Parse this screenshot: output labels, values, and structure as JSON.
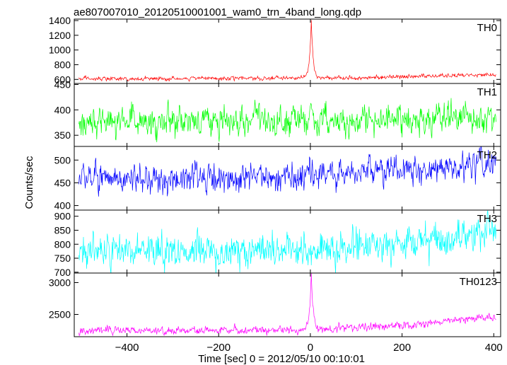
{
  "chart_data": {
    "type": "line",
    "title": "ae807007010_20120510001001_wam0_trn_4band_long.qdp",
    "xlabel": "Time [sec] 0 = 2012/05/10 00:10:01",
    "ylabel": "Counts/sec",
    "xlim": [
      -515,
      415
    ],
    "x_ticks": [
      -400,
      -200,
      0,
      200,
      400
    ],
    "x_tick_labels": [
      "−400",
      "−200",
      "0",
      "200",
      "400"
    ],
    "grid": false,
    "panels": [
      {
        "name": "TH0",
        "color": "#ff0000",
        "ylim": [
          545,
          1420
        ],
        "y_ticks": [
          600,
          800,
          1000,
          1200,
          1400
        ],
        "trend": [
          [
            -505,
            610
          ],
          [
            -300,
            612
          ],
          [
            -100,
            615
          ],
          [
            0,
            618
          ],
          [
            100,
            625
          ],
          [
            200,
            635
          ],
          [
            300,
            650
          ],
          [
            405,
            665
          ]
        ],
        "noise_std": 14,
        "spike": {
          "x": 2,
          "peak": 1420,
          "width": 7
        }
      },
      {
        "name": "TH1",
        "color": "#00ff00",
        "ylim": [
          328,
          452
        ],
        "y_ticks": [
          350,
          400,
          450
        ],
        "trend": [
          [
            -505,
            378
          ],
          [
            -200,
            378
          ],
          [
            0,
            380
          ],
          [
            200,
            381
          ],
          [
            405,
            384
          ]
        ],
        "noise_std": 14
      },
      {
        "name": "TH2",
        "color": "#0000ff",
        "ylim": [
          390,
          530
        ],
        "y_ticks": [
          400,
          450,
          500
        ],
        "trend": [
          [
            -505,
            462
          ],
          [
            -300,
            460
          ],
          [
            -100,
            462
          ],
          [
            0,
            466
          ],
          [
            200,
            475
          ],
          [
            300,
            485
          ],
          [
            405,
            495
          ]
        ],
        "noise_std": 15
      },
      {
        "name": "TH3",
        "color": "#00ffff",
        "ylim": [
          697,
          922
        ],
        "y_ticks": [
          700,
          750,
          800,
          850,
          900
        ],
        "trend": [
          [
            -505,
            775
          ],
          [
            -300,
            776
          ],
          [
            -100,
            778
          ],
          [
            0,
            782
          ],
          [
            200,
            800
          ],
          [
            300,
            820
          ],
          [
            405,
            845
          ]
        ],
        "noise_std": 28
      },
      {
        "name": "TH0123",
        "color": "#ff00ff",
        "ylim": [
          2150,
          3150
        ],
        "y_ticks": [
          2500,
          3000
        ],
        "trend": [
          [
            -505,
            2245
          ],
          [
            -300,
            2248
          ],
          [
            -100,
            2255
          ],
          [
            0,
            2262
          ],
          [
            100,
            2290
          ],
          [
            200,
            2330
          ],
          [
            300,
            2400
          ],
          [
            405,
            2460
          ]
        ],
        "noise_std": 30,
        "spike": {
          "x": 2,
          "peak": 3150,
          "width": 7
        }
      }
    ]
  }
}
